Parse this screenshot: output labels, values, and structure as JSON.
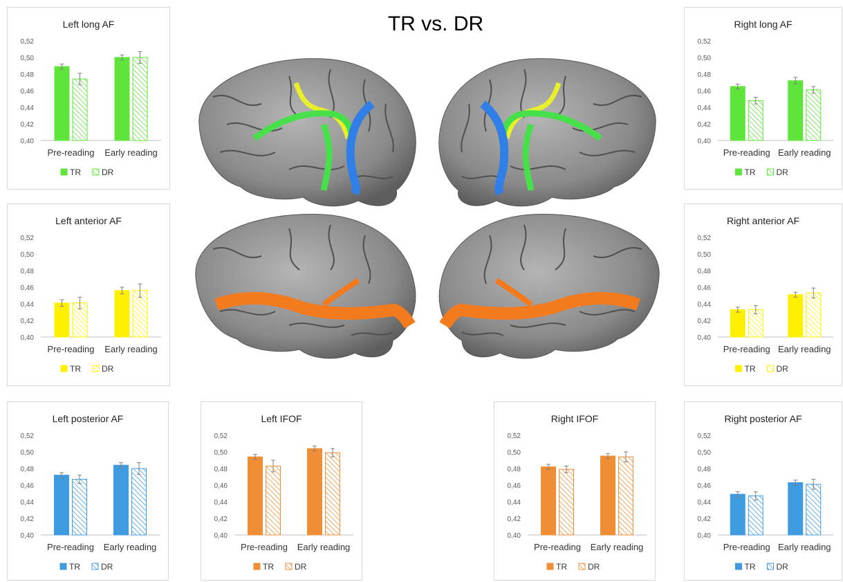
{
  "title": "TR vs. DR",
  "colors": {
    "green": "#5ee43a",
    "yellow": "#fff000",
    "blue": "#3e9be0",
    "orange": "#f08e35",
    "brain": "#8c8c8c",
    "tract_blue": "#2f7fe6",
    "tract_green": "#48e04a",
    "tract_yellow": "#e9f02a",
    "tract_orange": "#f47a1e",
    "axis_text": "#595959"
  },
  "chart_data": [
    {
      "id": "left-long-af",
      "type": "bar",
      "title": "Left long AF",
      "categories": [
        "Pre-reading",
        "Early reading"
      ],
      "series": [
        {
          "name": "TR",
          "values": [
            0.489,
            0.5
          ],
          "errors": [
            0.003,
            0.003
          ]
        },
        {
          "name": "DR",
          "values": [
            0.474,
            0.5
          ],
          "errors": [
            0.007,
            0.007
          ]
        }
      ],
      "ylim": [
        0.4,
        0.52
      ],
      "yticks": [
        "0,40",
        "0,42",
        "0,44",
        "0,46",
        "0,48",
        "0,50",
        "0,52"
      ],
      "color": "green",
      "legend": "bottom"
    },
    {
      "id": "right-long-af",
      "type": "bar",
      "title": "Right long AF",
      "categories": [
        "Pre-reading",
        "Early reading"
      ],
      "series": [
        {
          "name": "TR",
          "values": [
            0.465,
            0.472
          ],
          "errors": [
            0.003,
            0.004
          ]
        },
        {
          "name": "DR",
          "values": [
            0.448,
            0.461
          ],
          "errors": [
            0.004,
            0.004
          ]
        }
      ],
      "ylim": [
        0.4,
        0.52
      ],
      "yticks": [
        "0,40",
        "0,42",
        "0,44",
        "0,46",
        "0,48",
        "0,50",
        "0,52"
      ],
      "color": "green",
      "legend": "bottom"
    },
    {
      "id": "left-anterior-af",
      "type": "bar",
      "title": "Left anterior AF",
      "categories": [
        "Pre-reading",
        "Early reading"
      ],
      "series": [
        {
          "name": "TR",
          "values": [
            0.441,
            0.456
          ],
          "errors": [
            0.004,
            0.004
          ]
        },
        {
          "name": "DR",
          "values": [
            0.441,
            0.456
          ],
          "errors": [
            0.007,
            0.008
          ]
        }
      ],
      "ylim": [
        0.4,
        0.52
      ],
      "yticks": [
        "0,40",
        "0,42",
        "0,44",
        "0,46",
        "0,48",
        "0,50",
        "0,52"
      ],
      "color": "yellow",
      "legend": "bottom"
    },
    {
      "id": "right-anterior-af",
      "type": "bar",
      "title": "Right anterior AF",
      "categories": [
        "Pre-reading",
        "Early reading"
      ],
      "series": [
        {
          "name": "TR",
          "values": [
            0.433,
            0.451
          ],
          "errors": [
            0.003,
            0.003
          ]
        },
        {
          "name": "DR",
          "values": [
            0.433,
            0.453
          ],
          "errors": [
            0.005,
            0.006
          ]
        }
      ],
      "ylim": [
        0.4,
        0.52
      ],
      "yticks": [
        "0,40",
        "0,42",
        "0,44",
        "0,46",
        "0,48",
        "0,50",
        "0,52"
      ],
      "color": "yellow",
      "legend": "bottom"
    },
    {
      "id": "left-posterior-af",
      "type": "bar",
      "title": "Left posterior AF",
      "categories": [
        "Pre-reading",
        "Early reading"
      ],
      "series": [
        {
          "name": "TR",
          "values": [
            0.472,
            0.484
          ],
          "errors": [
            0.003,
            0.003
          ]
        },
        {
          "name": "DR",
          "values": [
            0.467,
            0.48
          ],
          "errors": [
            0.005,
            0.007
          ]
        }
      ],
      "ylim": [
        0.4,
        0.52
      ],
      "yticks": [
        "0,40",
        "0,42",
        "0,44",
        "0,46",
        "0,48",
        "0,50",
        "0,52"
      ],
      "color": "blue",
      "legend": "bottom"
    },
    {
      "id": "left-ifof",
      "type": "bar",
      "title": "Left IFOF",
      "categories": [
        "Pre-reading",
        "Early reading"
      ],
      "series": [
        {
          "name": "TR",
          "values": [
            0.494,
            0.504
          ],
          "errors": [
            0.003,
            0.003
          ]
        },
        {
          "name": "DR",
          "values": [
            0.483,
            0.499
          ],
          "errors": [
            0.007,
            0.005
          ]
        }
      ],
      "ylim": [
        0.4,
        0.52
      ],
      "yticks": [
        "0,40",
        "0,42",
        "0,44",
        "0,46",
        "0,48",
        "0,50",
        "0,52"
      ],
      "color": "orange",
      "legend": "bottom"
    },
    {
      "id": "right-ifof",
      "type": "bar",
      "title": "Right IFOF",
      "categories": [
        "Pre-reading",
        "Early reading"
      ],
      "series": [
        {
          "name": "TR",
          "values": [
            0.482,
            0.495
          ],
          "errors": [
            0.003,
            0.003
          ]
        },
        {
          "name": "DR",
          "values": [
            0.479,
            0.494
          ],
          "errors": [
            0.004,
            0.006
          ]
        }
      ],
      "ylim": [
        0.4,
        0.52
      ],
      "yticks": [
        "0,40",
        "0,42",
        "0,44",
        "0,46",
        "0,48",
        "0,50",
        "0,52"
      ],
      "color": "orange",
      "legend": "bottom"
    },
    {
      "id": "right-posterior-af",
      "type": "bar",
      "title": "Right posterior AF",
      "categories": [
        "Pre-reading",
        "Early reading"
      ],
      "series": [
        {
          "name": "TR",
          "values": [
            0.449,
            0.463
          ],
          "errors": [
            0.003,
            0.003
          ]
        },
        {
          "name": "DR",
          "values": [
            0.447,
            0.461
          ],
          "errors": [
            0.005,
            0.006
          ]
        }
      ],
      "ylim": [
        0.4,
        0.52
      ],
      "yticks": [
        "0,40",
        "0,42",
        "0,44",
        "0,46",
        "0,48",
        "0,50",
        "0,52"
      ],
      "color": "blue",
      "legend": "bottom"
    }
  ]
}
